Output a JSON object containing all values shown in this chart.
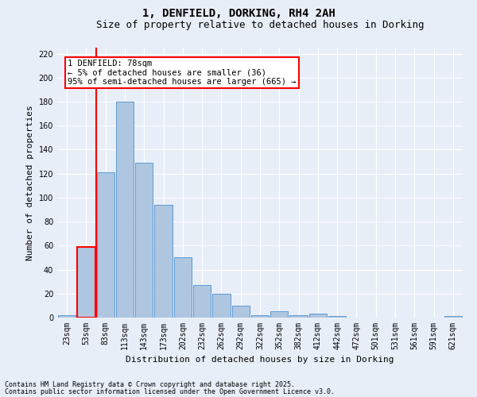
{
  "title": "1, DENFIELD, DORKING, RH4 2AH",
  "subtitle": "Size of property relative to detached houses in Dorking",
  "xlabel": "Distribution of detached houses by size in Dorking",
  "ylabel": "Number of detached properties",
  "footnote1": "Contains HM Land Registry data © Crown copyright and database right 2025.",
  "footnote2": "Contains public sector information licensed under the Open Government Licence v3.0.",
  "categories": [
    "23sqm",
    "53sqm",
    "83sqm",
    "113sqm",
    "143sqm",
    "173sqm",
    "202sqm",
    "232sqm",
    "262sqm",
    "292sqm",
    "322sqm",
    "352sqm",
    "382sqm",
    "412sqm",
    "442sqm",
    "472sqm",
    "501sqm",
    "531sqm",
    "561sqm",
    "591sqm",
    "621sqm"
  ],
  "values": [
    2,
    59,
    121,
    180,
    129,
    94,
    50,
    27,
    20,
    10,
    2,
    5,
    2,
    3,
    1,
    0,
    0,
    0,
    0,
    0,
    1
  ],
  "bar_color": "#aec6e0",
  "bar_edge_color": "#5b9bd5",
  "highlight_bar_color": "#aec6e0",
  "highlight_bar_edge_color": "#ff0000",
  "highlight_bar_index": 1,
  "red_line_x": 1.5,
  "highlight_color": "#ff0000",
  "ylim": [
    0,
    225
  ],
  "yticks": [
    0,
    20,
    40,
    60,
    80,
    100,
    120,
    140,
    160,
    180,
    200,
    220
  ],
  "annotation_text": "1 DENFIELD: 78sqm\n← 5% of detached houses are smaller (36)\n95% of semi-detached houses are larger (665) →",
  "bg_color": "#e8eef8",
  "plot_bg_color": "#e8eef8",
  "grid_color": "#ffffff",
  "title_fontsize": 10,
  "subtitle_fontsize": 9,
  "label_fontsize": 8,
  "tick_fontsize": 7,
  "annot_fontsize": 7.5
}
